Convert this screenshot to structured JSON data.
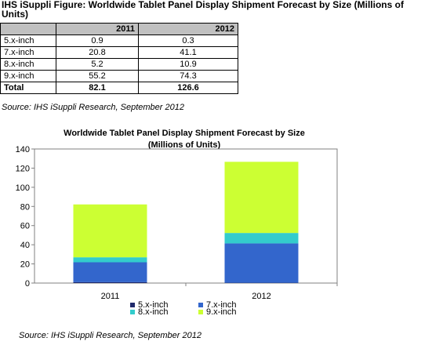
{
  "figure_title": "IHS iSuppli Figure: Worldwide Tablet Panel Display Shipment Forecast by Size (Millions of Units)",
  "table": {
    "columns": [
      "",
      "2011",
      "2012"
    ],
    "rows": [
      {
        "label": "5.x-inch",
        "v2011": "0.9",
        "v2012": "0.3"
      },
      {
        "label": "7.x-inch",
        "v2011": "20.8",
        "v2012": "41.1"
      },
      {
        "label": "8.x-inch",
        "v2011": "5.2",
        "v2012": "10.9"
      },
      {
        "label": "9.x-inch",
        "v2011": "55.2",
        "v2012": "74.3"
      }
    ],
    "total": {
      "label": "Total",
      "v2011": "82.1",
      "v2012": "126.6"
    }
  },
  "source_top": "Source: IHS iSuppli Research, September 2012",
  "source_bottom": "Source: IHS iSuppli Research, September 2012",
  "chart_data": {
    "type": "bar",
    "stacked": true,
    "title": "Worldwide Tablet Panel Display Shipment Forecast by Size",
    "subtitle": "(Millions of Units)",
    "categories": [
      "2011",
      "2012"
    ],
    "series": [
      {
        "name": "5.x-inch",
        "values": [
          0.9,
          0.3
        ],
        "color": "#1f2a6b"
      },
      {
        "name": "7.x-inch",
        "values": [
          20.8,
          41.1
        ],
        "color": "#3366cc"
      },
      {
        "name": "8.x-inch",
        "values": [
          5.2,
          10.9
        ],
        "color": "#33cccc"
      },
      {
        "name": "9.x-inch",
        "values": [
          55.2,
          74.3
        ],
        "color": "#ccff33"
      }
    ],
    "ylim": [
      0,
      140
    ],
    "yticks": [
      0,
      20,
      40,
      60,
      80,
      100,
      120,
      140
    ],
    "grid": false,
    "legend": "bottom"
  }
}
